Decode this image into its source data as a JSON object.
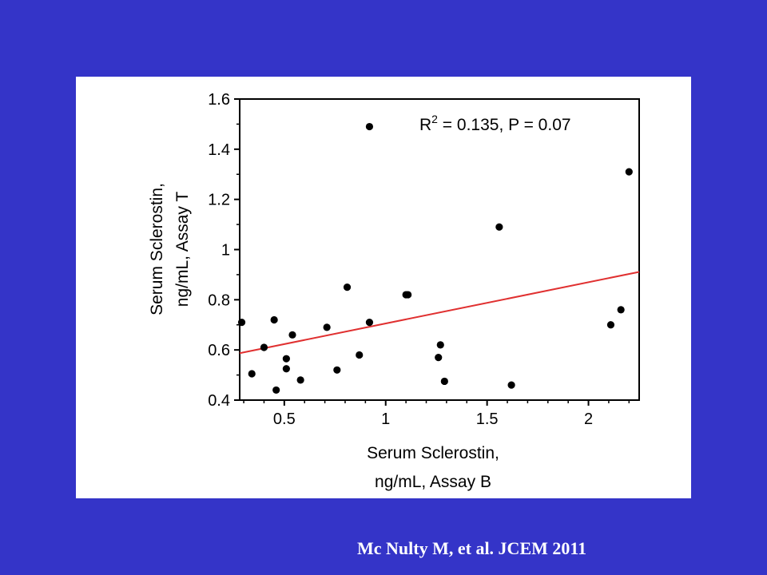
{
  "slide": {
    "background_color": "#3434c8",
    "citation": "Mc Nulty M, et al. JCEM 2011"
  },
  "chart_data": {
    "type": "scatter",
    "title": "",
    "xlabel_lines": [
      "Serum Sclerostin,",
      "ng/mL, Assay B"
    ],
    "ylabel_lines": [
      "Serum Sclerostin,",
      "ng/mL, Assay T"
    ],
    "xlim": [
      0.28,
      2.25
    ],
    "ylim": [
      0.4,
      1.6
    ],
    "x_ticks": [
      0.5,
      1,
      1.5,
      2
    ],
    "x_tick_labels": [
      "0.5",
      "1",
      "1.5",
      "2"
    ],
    "y_ticks": [
      0.4,
      0.6,
      0.8,
      1,
      1.2,
      1.4,
      1.6
    ],
    "y_tick_labels": [
      "0.4",
      "0.6",
      "0.8",
      "1",
      "1.2",
      "1.4",
      "1.6"
    ],
    "grid": false,
    "point_color": "#000000",
    "regression_color": "#e03030",
    "annotation": {
      "r_text": "R",
      "superscript": "2",
      "rest_text": " = 0.135, P = 0.07"
    },
    "regression_line": {
      "x": [
        0.28,
        2.25
      ],
      "y": [
        0.587,
        0.911
      ]
    },
    "series": [
      {
        "x": [
          0.92,
          2.2,
          1.56,
          0.81,
          1.1,
          1.11,
          0.45,
          0.29,
          0.92,
          0.71,
          0.54,
          0.4,
          1.27,
          1.26,
          0.87,
          0.51,
          0.51,
          0.34,
          0.76,
          0.58,
          1.29,
          1.62,
          0.46,
          2.16,
          2.11
        ],
        "y": [
          1.49,
          1.31,
          1.09,
          0.85,
          0.82,
          0.82,
          0.72,
          0.71,
          0.71,
          0.69,
          0.66,
          0.61,
          0.62,
          0.57,
          0.58,
          0.565,
          0.525,
          0.505,
          0.52,
          0.48,
          0.475,
          0.46,
          0.44,
          0.76,
          0.7
        ]
      }
    ]
  }
}
